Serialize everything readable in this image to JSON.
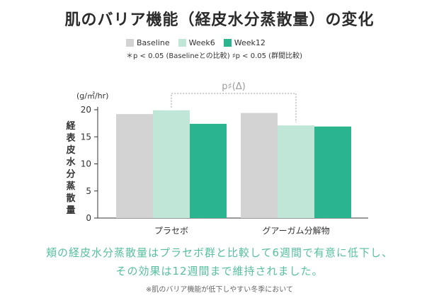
{
  "title": "肌のバリア機能（経皮水分蒸散量）の変化",
  "legend": [
    {
      "label": "Baseline",
      "color": "#d3d3d3"
    },
    {
      "label": "Week6",
      "color": "#bfe6d6"
    },
    {
      "label": "Week12",
      "color": "#2bb58e"
    }
  ],
  "note": "＊p < 0.05 (Baselineとの比較) ♯p < 0.05 (群間比較)",
  "chart_data": {
    "type": "bar",
    "categories": [
      "プラセボ",
      "グアーガム分解物"
    ],
    "series": [
      {
        "name": "Baseline",
        "values": [
          19.2,
          19.4
        ]
      },
      {
        "name": "Week6",
        "values": [
          19.9,
          17.1
        ]
      },
      {
        "name": "Week12",
        "values": [
          17.4,
          16.9
        ]
      }
    ],
    "unit_label": "(g/㎡/hr)",
    "ylabel": "経表皮水分蒸散量",
    "ylim": [
      0,
      20
    ],
    "yticks": [
      0,
      5,
      10,
      15,
      20
    ],
    "annotation": "p♯(Δ)"
  },
  "caption_line1": "頬の経皮水分蒸散量はプラセボ群と比較して6週間で有意に低下し、",
  "caption_line2": "その効果は12週間まで維持されました。",
  "footnote": "※肌のバリア機能が低下しやすい冬季において"
}
